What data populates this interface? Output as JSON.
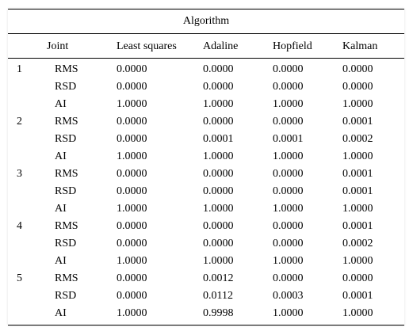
{
  "table": {
    "caption": "Algorithm",
    "headers": {
      "joint": "Joint",
      "least_squares": "Least squares",
      "adaline": "Adaline",
      "hopfield": "Hopfield",
      "kalman": "Kalman"
    },
    "groups": [
      {
        "joint": "1",
        "rows": [
          {
            "metric": "RMS",
            "least_squares": "0.0000",
            "adaline": "0.0000",
            "hopfield": "0.0000",
            "kalman": "0.0000"
          },
          {
            "metric": "RSD",
            "least_squares": "0.0000",
            "adaline": "0.0000",
            "hopfield": "0.0000",
            "kalman": "0.0000"
          },
          {
            "metric": "AI",
            "least_squares": "1.0000",
            "adaline": "1.0000",
            "hopfield": "1.0000",
            "kalman": "1.0000"
          }
        ]
      },
      {
        "joint": "2",
        "rows": [
          {
            "metric": "RMS",
            "least_squares": "0.0000",
            "adaline": "0.0000",
            "hopfield": "0.0000",
            "kalman": "0.0001"
          },
          {
            "metric": "RSD",
            "least_squares": "0.0000",
            "adaline": "0.0001",
            "hopfield": "0.0001",
            "kalman": "0.0002"
          },
          {
            "metric": "AI",
            "least_squares": "1.0000",
            "adaline": "1.0000",
            "hopfield": "1.0000",
            "kalman": "1.0000"
          }
        ]
      },
      {
        "joint": "3",
        "rows": [
          {
            "metric": "RMS",
            "least_squares": "0.0000",
            "adaline": "0.0000",
            "hopfield": "0.0000",
            "kalman": "0.0001"
          },
          {
            "metric": "RSD",
            "least_squares": "0.0000",
            "adaline": "0.0000",
            "hopfield": "0.0000",
            "kalman": "0.0001"
          },
          {
            "metric": "AI",
            "least_squares": "1.0000",
            "adaline": "1.0000",
            "hopfield": "1.0000",
            "kalman": "1.0000"
          }
        ]
      },
      {
        "joint": "4",
        "rows": [
          {
            "metric": "RMS",
            "least_squares": "0.0000",
            "adaline": "0.0000",
            "hopfield": "0.0000",
            "kalman": "0.0001"
          },
          {
            "metric": "RSD",
            "least_squares": "0.0000",
            "adaline": "0.0000",
            "hopfield": "0.0000",
            "kalman": "0.0002"
          },
          {
            "metric": "AI",
            "least_squares": "1.0000",
            "adaline": "1.0000",
            "hopfield": "1.0000",
            "kalman": "1.0000"
          }
        ]
      },
      {
        "joint": "5",
        "rows": [
          {
            "metric": "RMS",
            "least_squares": "0.0000",
            "adaline": "0.0012",
            "hopfield": "0.0000",
            "kalman": "0.0000"
          },
          {
            "metric": "RSD",
            "least_squares": "0.0000",
            "adaline": "0.0112",
            "hopfield": "0.0003",
            "kalman": "0.0001"
          },
          {
            "metric": "AI",
            "least_squares": "1.0000",
            "adaline": "0.9998",
            "hopfield": "1.0000",
            "kalman": "1.0000"
          }
        ]
      }
    ]
  }
}
